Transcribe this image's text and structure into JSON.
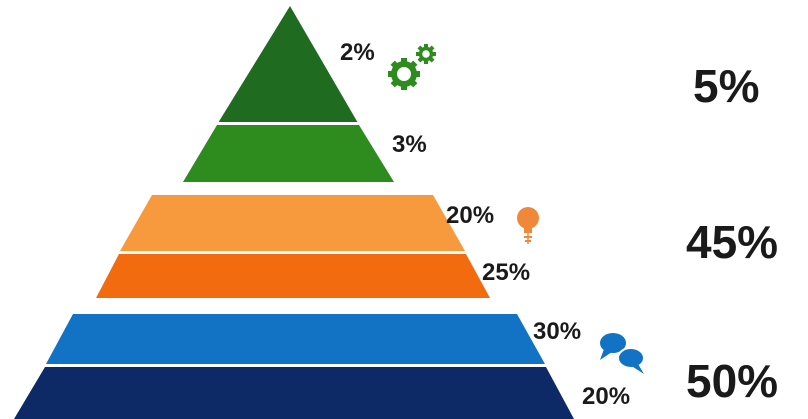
{
  "tiers": [
    {
      "total": "5%",
      "icon": "gears-icon",
      "layers": [
        {
          "label": "2%",
          "color": "#1f6b1f"
        },
        {
          "label": "3%",
          "color": "#2e8b1e"
        }
      ]
    },
    {
      "total": "45%",
      "icon": "lightbulb-icon",
      "layers": [
        {
          "label": "20%",
          "color": "#f79a3e"
        },
        {
          "label": "25%",
          "color": "#f26b0f"
        }
      ]
    },
    {
      "total": "50%",
      "icon": "chat-bubbles-icon",
      "layers": [
        {
          "label": "30%",
          "color": "#1273c4"
        },
        {
          "label": "20%",
          "color": "#0d2a66"
        }
      ]
    }
  ],
  "colors": {
    "green_icon": "#2e8b1e",
    "orange_icon": "#f0883a",
    "blue_icon": "#1273c4"
  }
}
